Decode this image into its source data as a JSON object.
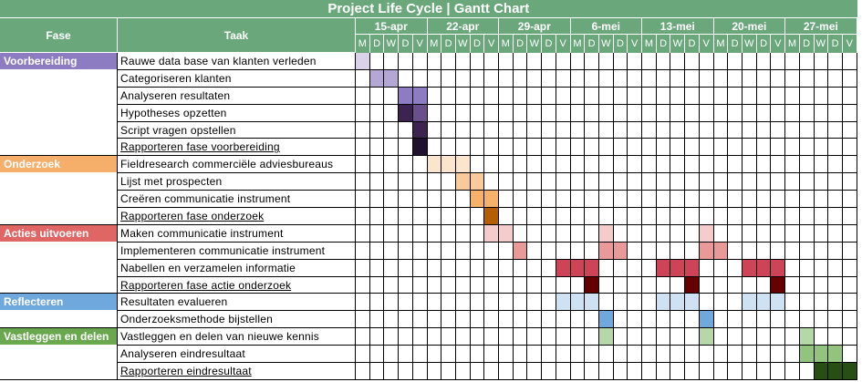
{
  "title": "Project Life Cycle | Gantt Chart",
  "headers": {
    "phase": "Fase",
    "task": "Taak"
  },
  "weeks": [
    "15-apr",
    "22-apr",
    "29-apr",
    "6-mei",
    "13-mei",
    "20-mei",
    "27-mei"
  ],
  "days": [
    "M",
    "D",
    "W",
    "D",
    "V"
  ],
  "colors": {
    "header": "#6aa87c",
    "voorbereiding": "#8e7cc3",
    "onderzoek": "#f6ae6b",
    "acties": "#e06666",
    "reflecteren": "#6fa8dc",
    "vastleggen": "#6aa84f"
  },
  "phases": [
    {
      "label": "Voorbereiding",
      "color": "#8e7cc3",
      "start_row": 0,
      "span": 6
    },
    {
      "label": "Onderzoek",
      "color": "#f6ae6b",
      "start_row": 6,
      "span": 4
    },
    {
      "label": "Acties uitvoeren",
      "color": "#e06666",
      "start_row": 10,
      "span": 4
    },
    {
      "label": "Reflecteren",
      "color": "#6fa8dc",
      "start_row": 14,
      "span": 2
    },
    {
      "label": "Vastleggen en delen",
      "color": "#6aa84f",
      "start_row": 16,
      "span": 3
    }
  ],
  "tasks": [
    {
      "label": "Rauwe data base van klanten verleden",
      "underline": false,
      "bars": [
        [
          0,
          "#d9d2e9"
        ]
      ]
    },
    {
      "label": "Categoriseren klanten",
      "underline": false,
      "bars": [
        [
          1,
          "#b4a7d6"
        ],
        [
          2,
          "#b4a7d6"
        ]
      ]
    },
    {
      "label": "Analyseren resultaten",
      "underline": false,
      "bars": [
        [
          3,
          "#8e7cc3"
        ],
        [
          4,
          "#8e7cc3"
        ]
      ]
    },
    {
      "label": "Hypotheses opzetten",
      "underline": false,
      "bars": [
        [
          3,
          "#3d2450"
        ],
        [
          4,
          "#6b4f8a"
        ]
      ]
    },
    {
      "label": "Script vragen opstellen",
      "underline": false,
      "bars": [
        [
          4,
          "#3d2450"
        ]
      ]
    },
    {
      "label": "Rapporteren fase voorbereiding",
      "underline": true,
      "bars": [
        [
          4,
          "#20122e"
        ]
      ]
    },
    {
      "label": "Fieldresearch commerciële adviesbureaus",
      "underline": false,
      "bars": [
        [
          5,
          "#fce5cd"
        ],
        [
          6,
          "#fce5cd"
        ],
        [
          7,
          "#fce5cd"
        ]
      ]
    },
    {
      "label": "Lijst met prospecten",
      "underline": false,
      "bars": [
        [
          7,
          "#f9cb9c"
        ],
        [
          8,
          "#f9cb9c"
        ]
      ]
    },
    {
      "label": "Creëren communicatie instrument",
      "underline": false,
      "bars": [
        [
          8,
          "#f6b26b"
        ],
        [
          9,
          "#f6b26b"
        ]
      ]
    },
    {
      "label": "Rapporteren fase onderzoek",
      "underline": true,
      "bars": [
        [
          9,
          "#b45f06"
        ]
      ]
    },
    {
      "label": "Maken communicatie instrument",
      "underline": false,
      "bars": [
        [
          9,
          "#f4cccc"
        ],
        [
          10,
          "#f4cccc"
        ],
        [
          17,
          "#f4cccc"
        ],
        [
          24,
          "#f4cccc"
        ]
      ]
    },
    {
      "label": "Implementeren communicatie instrument",
      "underline": false,
      "bars": [
        [
          11,
          "#ea9999"
        ],
        [
          17,
          "#ea9999"
        ],
        [
          18,
          "#ea9999"
        ],
        [
          24,
          "#ea9999"
        ],
        [
          25,
          "#ea9999"
        ]
      ]
    },
    {
      "label": "Nabellen en verzamelen informatie",
      "underline": false,
      "bars": [
        [
          14,
          "#cc4455"
        ],
        [
          15,
          "#cc4455"
        ],
        [
          16,
          "#cc4455"
        ],
        [
          21,
          "#cc4455"
        ],
        [
          22,
          "#cc4455"
        ],
        [
          23,
          "#cc4455"
        ],
        [
          27,
          "#cc4455"
        ],
        [
          28,
          "#cc4455"
        ],
        [
          29,
          "#cc4455"
        ]
      ]
    },
    {
      "label": "Rapporteren fase actie onderzoek",
      "underline": true,
      "bars": [
        [
          16,
          "#660000"
        ],
        [
          23,
          "#660000"
        ],
        [
          29,
          "#660000"
        ]
      ]
    },
    {
      "label": "Resultaten evalueren",
      "underline": false,
      "bars": [
        [
          14,
          "#cfe2f3"
        ],
        [
          15,
          "#cfe2f3"
        ],
        [
          16,
          "#cfe2f3"
        ],
        [
          21,
          "#cfe2f3"
        ],
        [
          22,
          "#cfe2f3"
        ],
        [
          23,
          "#cfe2f3"
        ],
        [
          27,
          "#cfe2f3"
        ],
        [
          28,
          "#cfe2f3"
        ],
        [
          29,
          "#cfe2f3"
        ]
      ]
    },
    {
      "label": "Onderzoeksmethode bijstellen",
      "underline": false,
      "bars": [
        [
          17,
          "#6fa8dc"
        ],
        [
          24,
          "#6fa8dc"
        ]
      ]
    },
    {
      "label": "Vastleggen en delen van nieuwe kennis",
      "underline": false,
      "bars": [
        [
          17,
          "#b6d7a8"
        ],
        [
          24,
          "#b6d7a8"
        ],
        [
          31,
          "#b6d7a8"
        ]
      ]
    },
    {
      "label": "Analyseren eindresultaat",
      "underline": false,
      "bars": [
        [
          31,
          "#93c47d"
        ],
        [
          32,
          "#93c47d"
        ],
        [
          33,
          "#93c47d"
        ]
      ]
    },
    {
      "label": "Rapporteren eindresultaat",
      "underline": true,
      "bars": [
        [
          32,
          "#274e13"
        ],
        [
          33,
          "#274e13"
        ],
        [
          34,
          "#274e13"
        ]
      ]
    }
  ]
}
